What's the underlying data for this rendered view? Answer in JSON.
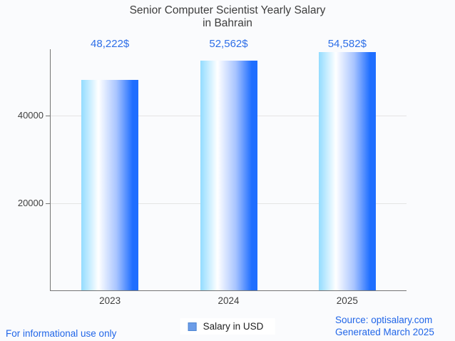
{
  "page": {
    "background": "#fafbfd"
  },
  "title": {
    "line1": "Senior Computer Scientist Yearly Salary",
    "line2": "in Bahrain"
  },
  "chart_data": {
    "type": "bar",
    "title": "Senior Computer Scientist Yearly Salary in Bahrain",
    "categories": [
      "2023",
      "2024",
      "2025"
    ],
    "values": [
      48222,
      52562,
      54582
    ],
    "value_labels": [
      "48,222$",
      "52,562$",
      "54,582$"
    ],
    "series": [
      {
        "name": "Salary in USD",
        "values": [
          48222,
          52562,
          54582
        ]
      }
    ],
    "xlabel": "",
    "ylabel": "",
    "ylim": [
      0,
      55200
    ],
    "yticks": [
      20000,
      40000
    ],
    "grid": true,
    "legend_position": "bottom",
    "bar_gradient": [
      "#93dcff",
      "#ffffff",
      "#a8c4ff",
      "#1f6eff"
    ]
  },
  "legend": {
    "label": "Salary in USD",
    "marker_fill": "#6c9de8",
    "marker_border": "#4e86d2"
  },
  "footer": {
    "left": "For informational use only",
    "source": "Source: optisalary.com",
    "generated": "Generated March 2025"
  },
  "colors": {
    "value_label": "#2e6fe8",
    "link": "#2166e8",
    "title": "#3d3d3d",
    "tick_label": "#3f3f3f",
    "axis": "#757575",
    "gridline": "#e4e4e4",
    "bar_blue": "#1f6eff",
    "bar_light": "#93dcff"
  }
}
